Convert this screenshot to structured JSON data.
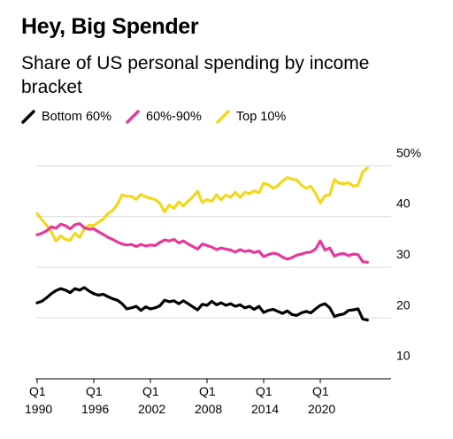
{
  "header": {
    "title": "Hey, Big Spender",
    "subtitle": "Share of US personal spending by income bracket"
  },
  "legend": [
    {
      "label": "Bottom 60%",
      "color": "#000000"
    },
    {
      "label": "60%-90%",
      "color": "#e6399b"
    },
    {
      "label": "Top 10%",
      "color": "#f2d81d"
    }
  ],
  "chart_data": {
    "type": "line",
    "xlim": [
      1990,
      2027.5
    ],
    "ylim": [
      8,
      52
    ],
    "y_ticks": [
      10,
      20,
      30,
      40,
      50
    ],
    "y_tick_labels": [
      "10",
      "20",
      "30",
      "40",
      "50%"
    ],
    "x_ticks": [
      1990,
      1996,
      2002,
      2008,
      2014,
      2020
    ],
    "x_tick_labels": [
      [
        "Q1",
        "1990"
      ],
      [
        "Q1",
        "1996"
      ],
      [
        "Q1",
        "2002"
      ],
      [
        "Q1",
        "2008"
      ],
      [
        "Q1",
        "2014"
      ],
      [
        "Q1",
        "2020"
      ]
    ],
    "grid": true,
    "series": [
      {
        "name": "Bottom 60%",
        "color": "#000000",
        "x": [
          1990,
          1990.5,
          1991,
          1991.5,
          1992,
          1992.5,
          1993,
          1993.5,
          1994,
          1994.5,
          1995,
          1995.5,
          1996,
          1996.5,
          1997,
          1997.5,
          1998,
          1998.5,
          1999,
          1999.5,
          2000,
          2000.5,
          2001,
          2001.5,
          2002,
          2002.5,
          2003,
          2003.5,
          2004,
          2004.5,
          2005,
          2005.5,
          2006,
          2006.5,
          2007,
          2007.5,
          2008,
          2008.5,
          2009,
          2009.5,
          2010,
          2010.5,
          2011,
          2011.5,
          2012,
          2012.5,
          2013,
          2013.5,
          2014,
          2014.5,
          2015,
          2015.5,
          2016,
          2016.5,
          2017,
          2017.5,
          2018,
          2018.5,
          2019,
          2019.5,
          2020,
          2020.5,
          2021,
          2021.5,
          2022,
          2022.5,
          2023,
          2023.5,
          2024,
          2024.5,
          2025
        ],
        "values": [
          23.0,
          23.3,
          24.0,
          24.8,
          25.4,
          25.8,
          25.5,
          25.0,
          25.8,
          25.5,
          26.0,
          25.3,
          24.8,
          24.5,
          24.7,
          24.2,
          23.8,
          23.5,
          22.8,
          21.8,
          22.0,
          22.3,
          21.5,
          22.2,
          21.8,
          22.0,
          22.4,
          23.5,
          23.2,
          23.4,
          22.8,
          23.4,
          22.8,
          22.2,
          21.6,
          22.7,
          22.5,
          23.3,
          22.6,
          23.0,
          22.5,
          22.8,
          22.3,
          22.6,
          22.0,
          22.3,
          21.7,
          22.3,
          21.1,
          21.5,
          21.7,
          21.3,
          20.9,
          21.4,
          20.7,
          20.5,
          21.0,
          21.3,
          21.0,
          21.8,
          22.5,
          22.8,
          22.0,
          20.3,
          20.6,
          20.8,
          21.5,
          21.6,
          21.8,
          19.8,
          19.6
        ]
      },
      {
        "name": "60%-90%",
        "color": "#e6399b",
        "x": [
          1990,
          1990.5,
          1991,
          1991.5,
          1992,
          1992.5,
          1993,
          1993.5,
          1994,
          1994.5,
          1995,
          1995.5,
          1996,
          1996.5,
          1997,
          1997.5,
          1998,
          1998.5,
          1999,
          1999.5,
          2000,
          2000.5,
          2001,
          2001.5,
          2002,
          2002.5,
          2003,
          2003.5,
          2004,
          2004.5,
          2005,
          2005.5,
          2006,
          2006.5,
          2007,
          2007.5,
          2008,
          2008.5,
          2009,
          2009.5,
          2010,
          2010.5,
          2011,
          2011.5,
          2012,
          2012.5,
          2013,
          2013.5,
          2014,
          2014.5,
          2015,
          2015.5,
          2016,
          2016.5,
          2017,
          2017.5,
          2018,
          2018.5,
          2019,
          2019.5,
          2020,
          2020.5,
          2021,
          2021.5,
          2022,
          2022.5,
          2023,
          2023.5,
          2024,
          2024.5,
          2025
        ],
        "values": [
          36.4,
          36.7,
          37.2,
          38.0,
          37.7,
          38.5,
          38.2,
          37.6,
          38.4,
          38.6,
          37.8,
          37.5,
          37.6,
          37.0,
          36.5,
          35.9,
          35.5,
          35.0,
          34.6,
          34.4,
          34.5,
          34.1,
          34.5,
          34.2,
          34.4,
          34.3,
          34.9,
          35.4,
          35.2,
          35.5,
          34.8,
          35.2,
          34.6,
          34.1,
          33.6,
          34.6,
          34.3,
          34.0,
          33.5,
          33.8,
          33.6,
          33.4,
          33.0,
          33.5,
          33.1,
          33.3,
          32.9,
          33.2,
          32.1,
          32.5,
          32.8,
          32.6,
          32.0,
          31.6,
          31.9,
          32.4,
          32.6,
          32.9,
          33.0,
          33.6,
          35.2,
          33.4,
          33.8,
          32.2,
          32.6,
          32.7,
          32.3,
          32.6,
          32.5,
          31.1,
          31.0
        ]
      },
      {
        "name": "Top 10%",
        "color": "#f2d81d",
        "x": [
          1990,
          1990.5,
          1991,
          1991.5,
          1992,
          1992.5,
          1993,
          1993.5,
          1994,
          1994.5,
          1995,
          1995.5,
          1996,
          1996.5,
          1997,
          1997.5,
          1998,
          1998.5,
          1999,
          1999.5,
          2000,
          2000.5,
          2001,
          2001.5,
          2002,
          2002.5,
          2003,
          2003.5,
          2004,
          2004.5,
          2005,
          2005.5,
          2006,
          2006.5,
          2007,
          2007.5,
          2008,
          2008.5,
          2009,
          2009.5,
          2010,
          2010.5,
          2011,
          2011.5,
          2012,
          2012.5,
          2013,
          2013.5,
          2014,
          2014.5,
          2015,
          2015.5,
          2016,
          2016.5,
          2017,
          2017.5,
          2018,
          2018.5,
          2019,
          2019.5,
          2020,
          2020.5,
          2021,
          2021.5,
          2022,
          2022.5,
          2023,
          2023.5,
          2024,
          2024.5,
          2025
        ],
        "values": [
          40.6,
          39.4,
          38.3,
          37.0,
          35.2,
          36.2,
          35.5,
          35.3,
          36.7,
          35.9,
          37.6,
          38.3,
          38.2,
          38.9,
          39.5,
          40.6,
          41.2,
          42.4,
          44.3,
          44.0,
          44.0,
          43.4,
          44.4,
          43.9,
          43.6,
          43.4,
          42.6,
          40.9,
          42.3,
          41.6,
          42.9,
          42.1,
          43.1,
          43.9,
          45.0,
          42.8,
          43.4,
          43.0,
          44.3,
          43.3,
          44.3,
          43.8,
          44.8,
          43.8,
          44.8,
          44.5,
          45.1,
          44.7,
          46.6,
          46.3,
          45.6,
          46.1,
          47.0,
          47.7,
          47.4,
          47.2,
          46.2,
          45.6,
          46.0,
          44.6,
          42.7,
          44.1,
          44.3,
          47.3,
          46.6,
          46.5,
          46.7,
          46.0,
          46.2,
          48.8,
          49.6
        ]
      }
    ]
  }
}
